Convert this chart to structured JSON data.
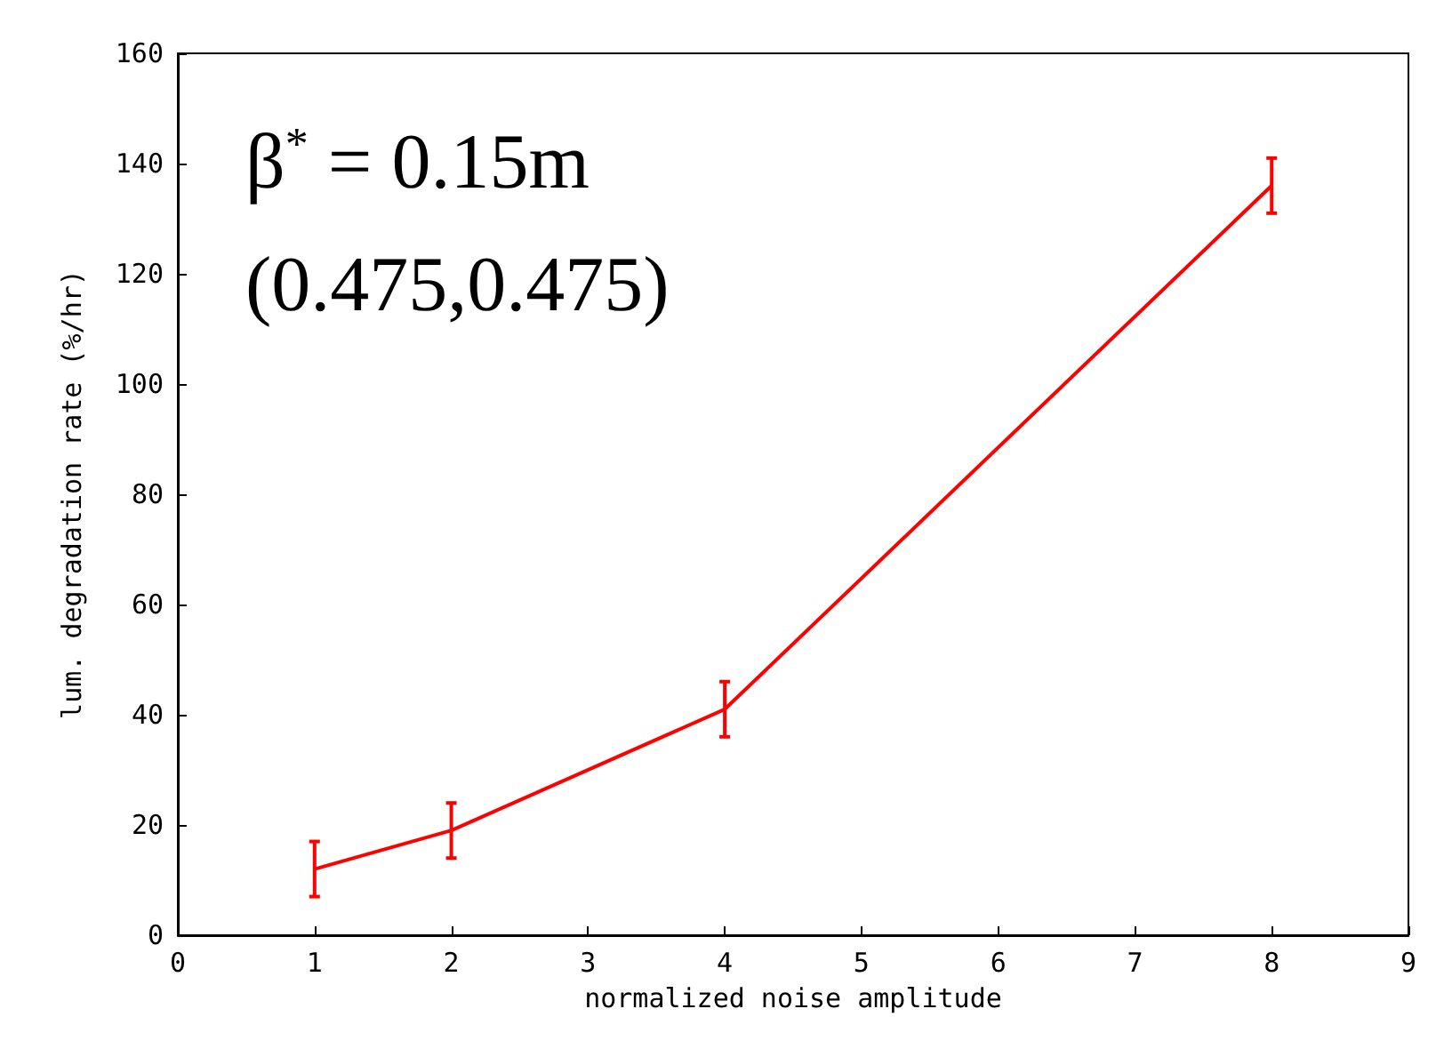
{
  "chart_data": {
    "type": "line",
    "xlabel": "normalized noise amplitude",
    "ylabel": "lum. degradation rate (%/hr)",
    "x": [
      1,
      2,
      4,
      8
    ],
    "series": [
      {
        "color": "#ff0000",
        "values": [
          12,
          19,
          41,
          136
        ],
        "errors": [
          5,
          5,
          5,
          5
        ]
      }
    ],
    "xlim": [
      0,
      9
    ],
    "xticks": [
      0,
      1,
      2,
      3,
      4,
      5,
      6,
      7,
      8,
      9
    ],
    "ylim": [
      0,
      160
    ],
    "yticks": [
      0,
      20,
      40,
      60,
      80,
      100,
      120,
      140,
      160
    ],
    "grid": false,
    "marker": "none",
    "line_style": "solid",
    "annotations": [
      "β$^{*}$ = 0.15m",
      "(0.475,0.475)"
    ]
  }
}
